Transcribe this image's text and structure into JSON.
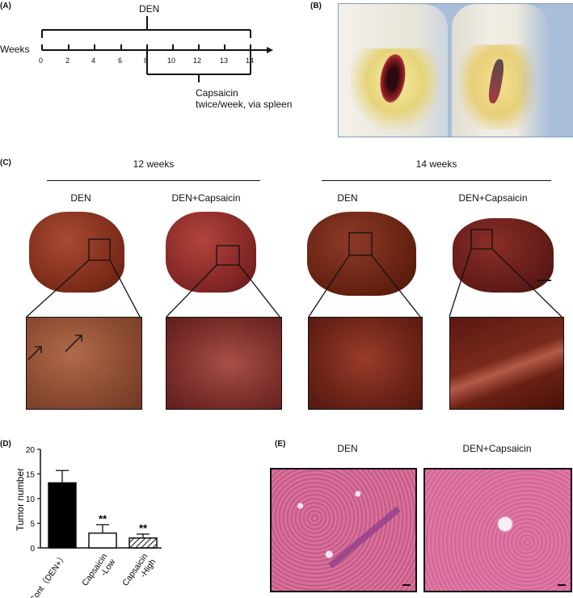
{
  "panelA": {
    "label": "(A)",
    "den": "DEN",
    "weeks_label": "Weeks",
    "ticks": [
      "0",
      "2",
      "4",
      "6",
      "8",
      "10",
      "12",
      "13",
      "14"
    ],
    "capsaicin": "Capsaicin",
    "regimen": "twice/week, via spleen"
  },
  "panelB": {
    "label": "(B)"
  },
  "panelC": {
    "label": "(C)",
    "group12": "12 weeks",
    "group14": "14 weeks",
    "den1": "DEN",
    "cap1": "DEN+Capsaicin",
    "den2": "DEN",
    "cap2": "DEN+Capsaicin"
  },
  "panelD": {
    "label": "(D)"
  },
  "panelE": {
    "label": "(E)",
    "den": "DEN",
    "cap": "DEN+Capsaicin"
  },
  "chart_data": {
    "type": "bar",
    "ylabel": "Tumor number",
    "ylim": [
      0,
      20
    ],
    "yticks": [
      "0",
      "5",
      "10",
      "15",
      "20"
    ],
    "categories": [
      "Cont（DEN+）",
      "Capsaicin -Low",
      "Capsaicin -High"
    ],
    "values": [
      13.2,
      3.0,
      2.0
    ],
    "errors": [
      2.5,
      1.7,
      0.8
    ],
    "annotations": [
      "",
      "**",
      "**"
    ],
    "fills": [
      "#000000",
      "#ffffff",
      "hatch"
    ]
  }
}
